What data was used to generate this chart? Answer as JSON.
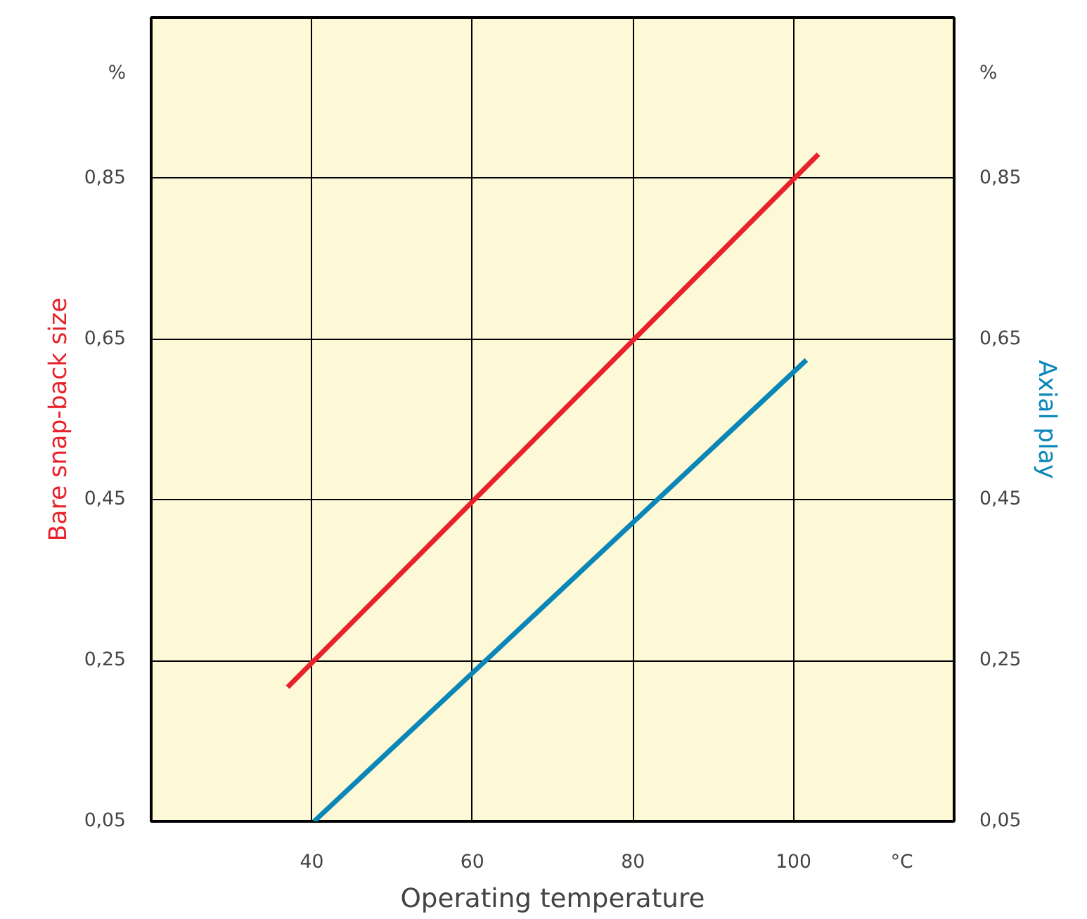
{
  "chart_data": {
    "type": "line",
    "xlabel": "Operating temperature",
    "ylabel": "Bare snap-back size",
    "y2label": "Axial play",
    "annotations": [
      "%",
      "%",
      "°C"
    ],
    "series": [
      {
        "color": "#e8212b",
        "x": [
          37.0,
          103.1
        ],
        "values": [
          0.217,
          0.88
        ]
      },
      {
        "color": "#0a86b8",
        "x": [
          40.3,
          101.6
        ],
        "values": [
          0.05,
          0.624
        ],
        "axis": "y2"
      }
    ],
    "xlim": [
      20,
      120
    ],
    "xticks": [
      40,
      60,
      80,
      100
    ],
    "ylim": [
      0.05,
      1.05
    ],
    "yticks": [
      {
        "value": 0.05,
        "label": "0,05"
      },
      {
        "value": 0.25,
        "label": "0,25"
      },
      {
        "value": 0.45,
        "label": "0,45"
      },
      {
        "value": 0.65,
        "label": "0,65"
      },
      {
        "value": 0.85,
        "label": "0,85"
      }
    ],
    "y2lim": [
      0.05,
      1.05
    ],
    "y2ticks": [
      {
        "value": 0.05,
        "label": "0,05"
      },
      {
        "value": 0.25,
        "label": "0,25"
      },
      {
        "value": 0.45,
        "label": "0,45"
      },
      {
        "value": 0.65,
        "label": "0,65"
      },
      {
        "value": 0.85,
        "label": "0,85"
      }
    ],
    "grid": true,
    "line_style": "solid",
    "marker": "none"
  }
}
